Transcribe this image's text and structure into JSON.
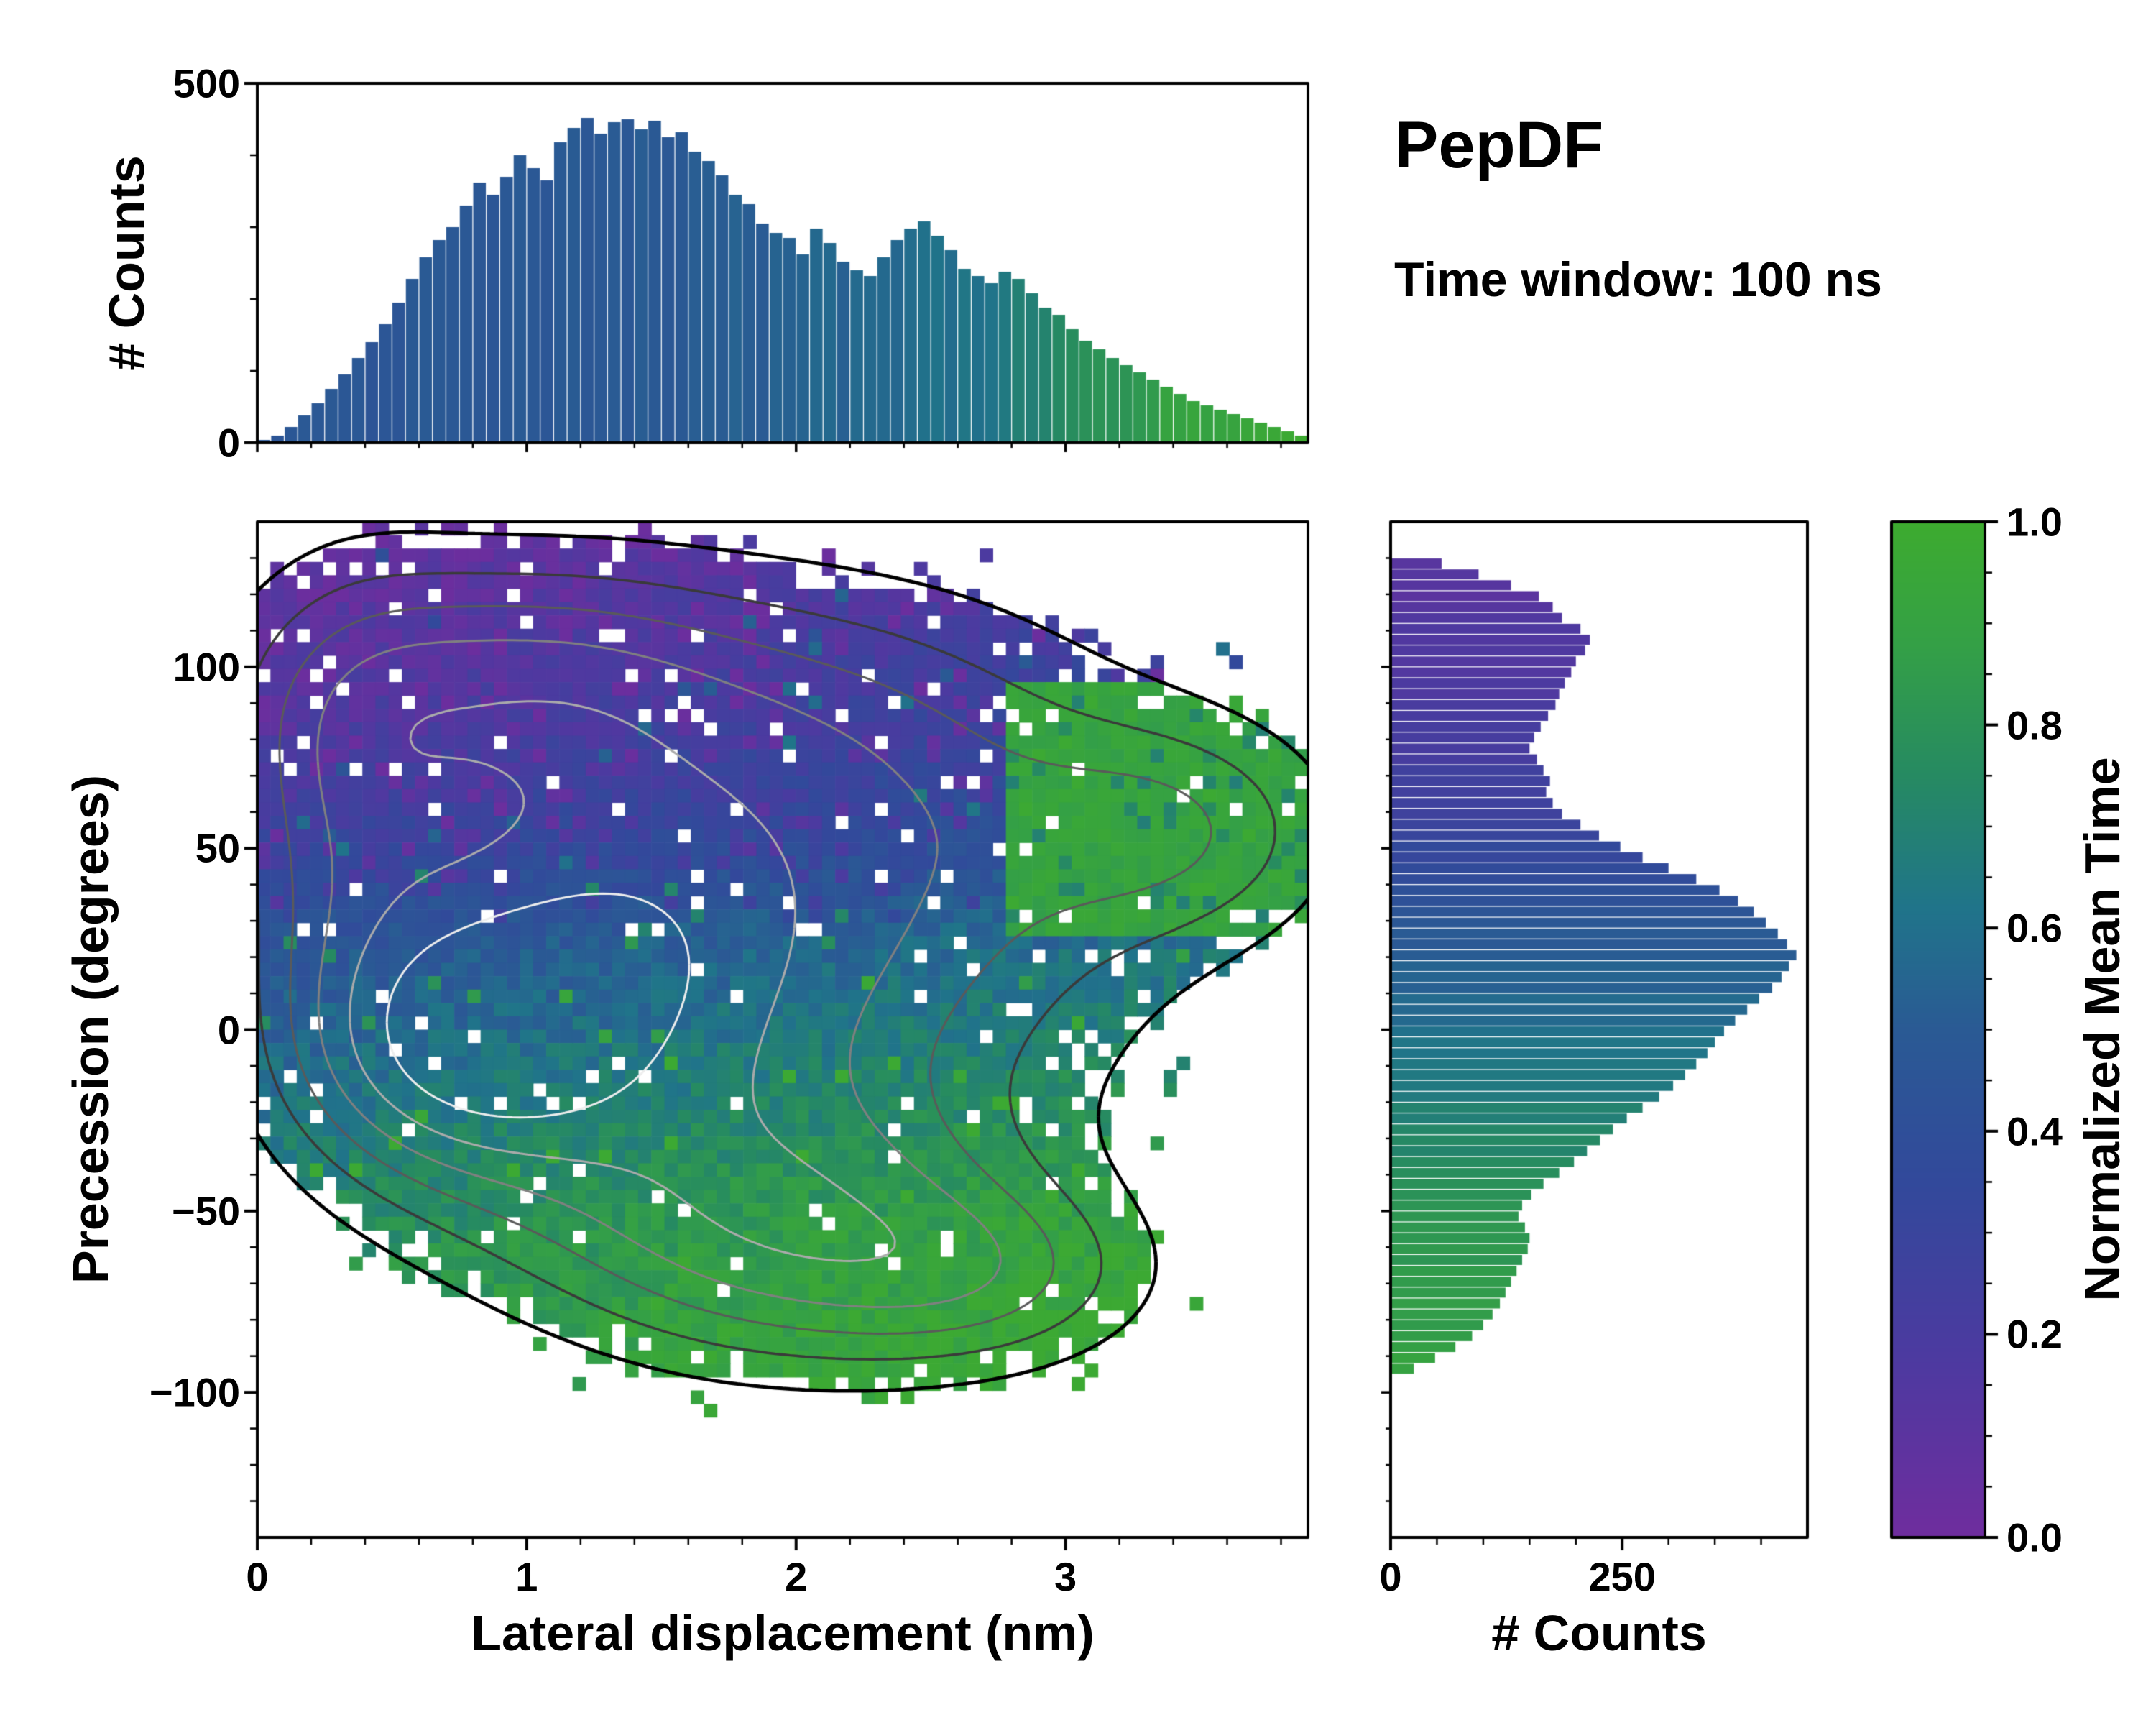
{
  "header": {
    "title": "PepDF",
    "subtitle": "Time window: 100 ns"
  },
  "colors": {
    "background": "#ffffff",
    "axis": "#000000",
    "text": "#000000"
  },
  "chart_data": [
    {
      "id": "top_histogram",
      "type": "bar",
      "orientation": "vertical",
      "ylabel": "# Counts",
      "ylim": [
        0,
        500
      ],
      "yticks": [
        "0",
        "500"
      ],
      "ytick_values": [
        0,
        500
      ],
      "x_range": [
        0,
        3.9
      ],
      "bin_width": 0.05,
      "values": [
        4,
        10,
        22,
        38,
        55,
        75,
        95,
        118,
        140,
        165,
        195,
        228,
        258,
        282,
        300,
        330,
        362,
        345,
        370,
        400,
        382,
        365,
        418,
        438,
        452,
        430,
        446,
        450,
        436,
        448,
        425,
        432,
        405,
        392,
        372,
        345,
        332,
        305,
        292,
        285,
        262,
        298,
        278,
        252,
        240,
        232,
        258,
        282,
        298,
        308,
        288,
        268,
        242,
        232,
        222,
        238,
        228,
        208,
        188,
        178,
        158,
        142,
        130,
        118,
        108,
        98,
        88,
        78,
        68,
        58,
        52,
        46,
        40,
        34,
        28,
        22,
        16,
        10
      ],
      "color_profile": [
        [
          0,
          0.46
        ],
        [
          1.5,
          0.5
        ],
        [
          2.2,
          0.55
        ],
        [
          2.7,
          0.62
        ],
        [
          3.0,
          0.75
        ],
        [
          3.4,
          0.9
        ],
        [
          3.9,
          0.98
        ]
      ]
    },
    {
      "id": "main_heatmap",
      "type": "heatmap",
      "xlabel": "Lateral displacement (nm)",
      "ylabel": "Precession (degrees)",
      "xlim": [
        0,
        3.9
      ],
      "ylim": [
        -140,
        140
      ],
      "xticks": [
        "0",
        "1",
        "2",
        "3"
      ],
      "xtick_values": [
        0,
        1,
        2,
        3
      ],
      "yticks": [
        "100",
        "50",
        "0",
        "−50",
        "−100"
      ],
      "ytick_values": [
        100,
        50,
        0,
        -50,
        -100
      ],
      "color_encoding": "Normalized Mean Time (purple = early, green = late)",
      "grid": [
        80,
        76
      ],
      "occupancy_threshold": 0.16,
      "hole_fraction": 0.045,
      "x_color_slope": 0.05,
      "green_arm": {
        "x_min": 2.8,
        "y_min": 25,
        "y_max": 95,
        "value": 0.86
      },
      "color_profile_y": [
        [
          -140,
          0.92
        ],
        [
          -95,
          0.9
        ],
        [
          -60,
          0.83
        ],
        [
          -40,
          0.76
        ],
        [
          -25,
          0.7
        ],
        [
          -10,
          0.64
        ],
        [
          5,
          0.58
        ],
        [
          20,
          0.52
        ],
        [
          35,
          0.43
        ],
        [
          50,
          0.33
        ],
        [
          65,
          0.26
        ],
        [
          85,
          0.2
        ],
        [
          110,
          0.15
        ],
        [
          140,
          0.08
        ]
      ],
      "density_blobs": [
        {
          "x": 1.2,
          "y": 20,
          "sx": 0.55,
          "sy": 30,
          "a": 1.0
        },
        {
          "x": 0.75,
          "y": -5,
          "sx": 0.38,
          "sy": 22,
          "a": 0.9
        },
        {
          "x": 0.9,
          "y": 92,
          "sx": 0.55,
          "sy": 24,
          "a": 0.6
        },
        {
          "x": 1.9,
          "y": 80,
          "sx": 0.8,
          "sy": 30,
          "a": 0.5
        },
        {
          "x": 2.3,
          "y": 30,
          "sx": 0.7,
          "sy": 35,
          "a": 0.5
        },
        {
          "x": 2.1,
          "y": -60,
          "sx": 0.55,
          "sy": 22,
          "a": 0.55
        },
        {
          "x": 1.6,
          "y": -35,
          "sx": 0.7,
          "sy": 28,
          "a": 0.6
        },
        {
          "x": 3.4,
          "y": 55,
          "sx": 0.4,
          "sy": 20,
          "a": 0.4
        },
        {
          "x": 2.7,
          "y": -68,
          "sx": 0.4,
          "sy": 16,
          "a": 0.35
        },
        {
          "x": 0.35,
          "y": 60,
          "sx": 0.3,
          "sy": 40,
          "a": 0.45
        }
      ],
      "contours": {
        "levels": [
          0.16,
          0.32,
          0.5,
          0.7,
          0.95,
          1.25
        ],
        "colors": [
          "#000000",
          "#3a3a3a",
          "#5a5a5a",
          "#808080",
          "#ababab",
          "#ededed"
        ],
        "widths": [
          5,
          3.5,
          3,
          3,
          3,
          3
        ]
      }
    },
    {
      "id": "right_histogram",
      "type": "bar",
      "orientation": "horizontal",
      "xlabel": "# Counts",
      "xlim": [
        0,
        450
      ],
      "xticks": [
        "0",
        "250"
      ],
      "xtick_values": [
        0,
        250
      ],
      "y_range": [
        130,
        -95
      ],
      "bin_height": 3,
      "values": [
        55,
        95,
        130,
        160,
        175,
        185,
        205,
        215,
        210,
        200,
        195,
        188,
        182,
        178,
        170,
        162,
        155,
        150,
        158,
        165,
        172,
        168,
        175,
        185,
        205,
        225,
        248,
        272,
        300,
        330,
        355,
        375,
        392,
        405,
        418,
        428,
        438,
        430,
        422,
        412,
        398,
        385,
        372,
        360,
        350,
        342,
        330,
        318,
        305,
        290,
        272,
        255,
        240,
        226,
        212,
        198,
        182,
        165,
        152,
        142,
        138,
        145,
        150,
        148,
        142,
        136,
        130,
        124,
        118,
        110,
        100,
        88,
        70,
        48,
        25
      ],
      "color_profile_y": [
        [
          -140,
          0.92
        ],
        [
          -95,
          0.9
        ],
        [
          -60,
          0.83
        ],
        [
          -40,
          0.76
        ],
        [
          -25,
          0.7
        ],
        [
          -10,
          0.64
        ],
        [
          5,
          0.58
        ],
        [
          20,
          0.52
        ],
        [
          35,
          0.43
        ],
        [
          50,
          0.33
        ],
        [
          65,
          0.26
        ],
        [
          85,
          0.2
        ],
        [
          110,
          0.15
        ],
        [
          140,
          0.08
        ]
      ]
    },
    {
      "id": "colorbar",
      "type": "colorbar",
      "label": "Normalized Mean Time",
      "ticks": [
        "0.0",
        "0.2",
        "0.4",
        "0.6",
        "0.8",
        "1.0"
      ],
      "tick_values": [
        0,
        0.2,
        0.4,
        0.6,
        0.8,
        1.0
      ],
      "range": [
        0,
        1
      ],
      "colormap_anchors": [
        [
          0,
          "#6f2d9e"
        ],
        [
          0.18,
          "#4c3aa0"
        ],
        [
          0.35,
          "#32499b"
        ],
        [
          0.5,
          "#2a5a94"
        ],
        [
          0.62,
          "#20748a"
        ],
        [
          0.75,
          "#268a62"
        ],
        [
          0.88,
          "#34a046"
        ],
        [
          1,
          "#3dab2f"
        ]
      ]
    }
  ]
}
